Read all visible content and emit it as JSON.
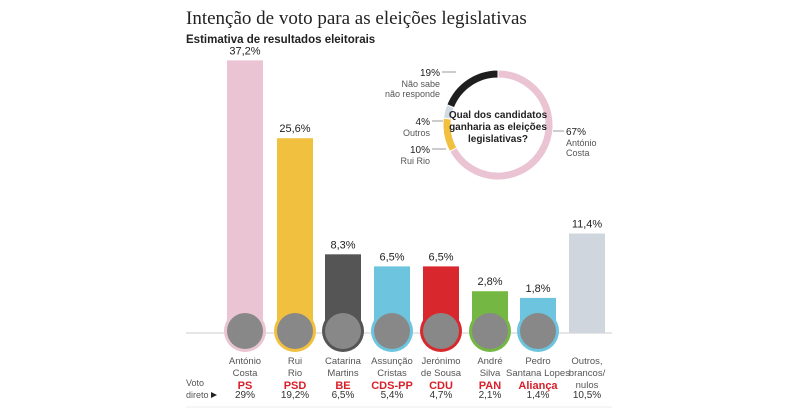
{
  "title": "Intenção de voto para as eleições legislativas",
  "subtitle": "Estimativa de resultados eleitorais",
  "chart_data": [
    {
      "type": "bar",
      "categories": [
        "António Costa",
        "Rui Rio",
        "Catarina Martins",
        "Assunção Cristas",
        "Jerónimo de Sousa",
        "André Silva",
        "Pedro Santana Lopes",
        "Outros, brancos/ nulos"
      ],
      "parties": [
        "PS",
        "PSD",
        "BE",
        "CDS-PP",
        "CDU",
        "PAN",
        "Aliança",
        ""
      ],
      "values": [
        37.2,
        25.6,
        8.3,
        6.5,
        6.5,
        2.8,
        1.8,
        11.4
      ],
      "value_labels": [
        "37,2%",
        "25,6%",
        "8,3%",
        "6,5%",
        "6,5%",
        "2,8%",
        "1,8%",
        "11,4%"
      ],
      "colors": [
        "#eac4d2",
        "#f1c03f",
        "#555555",
        "#6cc4de",
        "#d9282d",
        "#74b843",
        "#6cc4de",
        "#cfd6de"
      ],
      "direct_vote_label": "Voto direto",
      "direct_vote": [
        "29%",
        "19,2%",
        "6,5%",
        "5,4%",
        "4,7%",
        "2,1%",
        "1,4%",
        "10,5%"
      ]
    },
    {
      "type": "pie",
      "title": "Qual dos candidatos ganharia as eleições legislativas?",
      "slices": [
        {
          "label": "António Costa",
          "value": 67,
          "value_label": "67%",
          "color": "#eac4d2"
        },
        {
          "label": "Rui Rio",
          "value": 10,
          "value_label": "10%",
          "color": "#f1c03f"
        },
        {
          "label": "Outros",
          "value": 4,
          "value_label": "4%",
          "color": "#d3dbe2"
        },
        {
          "label": "Não sabe não responde",
          "value": 19,
          "value_label": "19%",
          "color": "#1e1e1e"
        }
      ]
    }
  ]
}
